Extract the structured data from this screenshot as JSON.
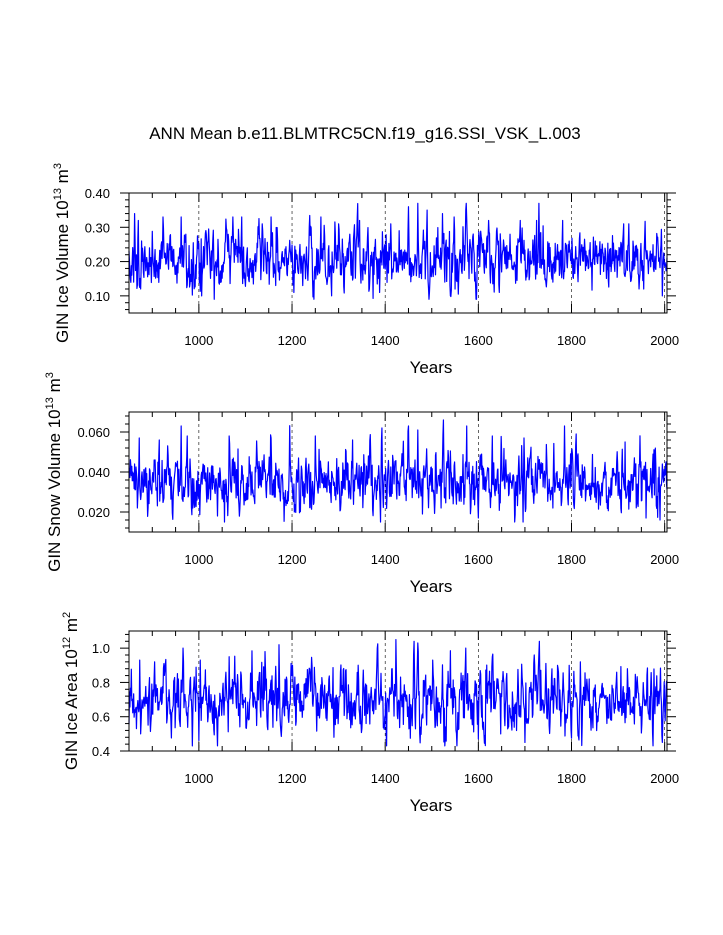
{
  "figure": {
    "title": "ANN Mean b.e11.BLMTRC5CN.f19_g16.SSI_VSK_L.003"
  },
  "colors": {
    "series": "#0000ff",
    "axes": "#000000",
    "background": "#ffffff"
  },
  "chart_data": [
    {
      "type": "line",
      "title": "ANN Mean b.e11.BLMTRC5CN.f19_g16.SSI_VSK_L.003",
      "xlabel": "Years",
      "ylabel": "GIN Ice Volume 10",
      "ylabel_exponent": "13",
      "ylabel_unit": "m",
      "ylabel_unit_exponent": "3",
      "xlim": [
        850,
        2005
      ],
      "ylim": [
        0.05,
        0.4
      ],
      "x_ticks": [
        1000,
        1200,
        1400,
        1600,
        1800,
        2000
      ],
      "x_tick_labels": [
        "1000",
        "1200",
        "1400",
        "1600",
        "1800",
        "2000"
      ],
      "y_ticks": [
        0.1,
        0.2,
        0.3,
        0.4
      ],
      "y_tick_labels": [
        "0.10",
        "0.20",
        "0.30",
        "0.40"
      ],
      "x_minor_step": 50,
      "y_minor_step": 0.02,
      "grid": "vertical dashed at major x ticks",
      "series": [
        {
          "name": "GIN Ice Volume",
          "x_start": 850,
          "x_step": 1,
          "count": 1156,
          "mean": 0.205,
          "std": 0.042,
          "min": 0.09,
          "max": 0.37,
          "lag1_autocorrelation": 0.45,
          "peaks": [
            [
              862,
              0.34
            ],
            [
              870,
              0.32
            ],
            [
              923,
              0.33
            ],
            [
              962,
              0.33
            ],
            [
              1005,
              0.32
            ],
            [
              1073,
              0.33
            ],
            [
              1092,
              0.33
            ],
            [
              1136,
              0.31
            ],
            [
              1155,
              0.33
            ],
            [
              1165,
              0.32
            ],
            [
              1262,
              0.33
            ],
            [
              1300,
              0.31
            ],
            [
              1345,
              0.32
            ],
            [
              1412,
              0.31
            ],
            [
              1450,
              0.36
            ],
            [
              1470,
              0.37
            ],
            [
              1523,
              0.34
            ],
            [
              1548,
              0.33
            ],
            [
              1573,
              0.35
            ],
            [
              1622,
              0.32
            ],
            [
              1690,
              0.32
            ],
            [
              1725,
              0.32
            ],
            [
              1730,
              0.37
            ],
            [
              1781,
              0.32
            ],
            [
              1912,
              0.31
            ],
            [
              1923,
              0.31
            ]
          ],
          "troughs": [
            [
              860,
              0.14
            ],
            [
              875,
              0.12
            ],
            [
              1006,
              0.1
            ],
            [
              1033,
              0.09
            ],
            [
              1165,
              0.13
            ],
            [
              1204,
              0.11
            ],
            [
              1223,
              0.13
            ],
            [
              1285,
              0.1
            ],
            [
              1388,
              0.11
            ],
            [
              1495,
              0.11
            ],
            [
              1550,
              0.12
            ],
            [
              1645,
              0.11
            ],
            [
              1760,
              0.14
            ],
            [
              1945,
              0.12
            ],
            [
              1955,
              0.12
            ],
            [
              1995,
              0.1
            ]
          ]
        }
      ]
    },
    {
      "type": "line",
      "xlabel": "Years",
      "ylabel": "GIN Snow Volume 10",
      "ylabel_exponent": "13",
      "ylabel_unit": "m",
      "ylabel_unit_exponent": "3",
      "xlim": [
        850,
        2005
      ],
      "ylim": [
        0.01,
        0.07
      ],
      "x_ticks": [
        1000,
        1200,
        1400,
        1600,
        1800,
        2000
      ],
      "x_tick_labels": [
        "1000",
        "1200",
        "1400",
        "1600",
        "1800",
        "2000"
      ],
      "y_ticks": [
        0.02,
        0.04,
        0.06
      ],
      "y_tick_labels": [
        "0.020",
        "0.040",
        "0.060"
      ],
      "x_minor_step": 50,
      "y_minor_step": 0.004,
      "grid": "vertical dashed at major x ticks",
      "series": [
        {
          "name": "GIN Snow Volume",
          "x_start": 850,
          "x_step": 1,
          "count": 1156,
          "mean": 0.035,
          "std": 0.0075,
          "min": 0.015,
          "max": 0.066,
          "lag1_autocorrelation": 0.45,
          "peaks": [
            [
              872,
              0.057
            ],
            [
              915,
              0.056
            ],
            [
              962,
              0.063
            ],
            [
              975,
              0.058
            ],
            [
              1065,
              0.058
            ],
            [
              1155,
              0.057
            ],
            [
              1250,
              0.058
            ],
            [
              1330,
              0.056
            ],
            [
              1393,
              0.062
            ],
            [
              1450,
              0.063
            ],
            [
              1470,
              0.061
            ],
            [
              1525,
              0.066
            ],
            [
              1575,
              0.063
            ],
            [
              1630,
              0.058
            ],
            [
              1698,
              0.057
            ],
            [
              1785,
              0.063
            ],
            [
              1810,
              0.059
            ],
            [
              1915,
              0.055
            ]
          ],
          "troughs": [
            [
              868,
              0.022
            ],
            [
              1040,
              0.018
            ],
            [
              1205,
              0.02
            ],
            [
              1390,
              0.015
            ],
            [
              1480,
              0.019
            ],
            [
              1600,
              0.017
            ],
            [
              1760,
              0.022
            ],
            [
              1960,
              0.017
            ],
            [
              1990,
              0.016
            ]
          ]
        }
      ]
    },
    {
      "type": "line",
      "xlabel": "Years",
      "ylabel": "GIN Ice Area 10",
      "ylabel_exponent": "12",
      "ylabel_unit": "m",
      "ylabel_unit_exponent": "2",
      "xlim": [
        850,
        2005
      ],
      "ylim": [
        0.4,
        1.1
      ],
      "x_ticks": [
        1000,
        1200,
        1400,
        1600,
        1800,
        2000
      ],
      "x_tick_labels": [
        "1000",
        "1200",
        "1400",
        "1600",
        "1800",
        "2000"
      ],
      "y_ticks": [
        0.4,
        0.6,
        0.8,
        1.0
      ],
      "y_tick_labels": [
        "0.4",
        "0.6",
        "0.8",
        "1.0"
      ],
      "x_minor_step": 50,
      "y_minor_step": 0.04,
      "grid": "vertical dashed at major x ticks",
      "series": [
        {
          "name": "GIN Ice Area",
          "x_start": 850,
          "x_step": 1,
          "count": 1156,
          "mean": 0.7,
          "std": 0.095,
          "min": 0.43,
          "max": 1.05,
          "lag1_autocorrelation": 0.45,
          "peaks": [
            [
              873,
              0.93
            ],
            [
              905,
              0.92
            ],
            [
              925,
              0.91
            ],
            [
              1003,
              0.93
            ],
            [
              1142,
              0.98
            ],
            [
              1172,
              1.02
            ],
            [
              1290,
              0.85
            ],
            [
              1383,
              1.0
            ],
            [
              1423,
              1.05
            ],
            [
              1462,
              1.04
            ],
            [
              1470,
              1.03
            ],
            [
              1502,
              0.93
            ],
            [
              1573,
              1.0
            ],
            [
              1630,
              0.95
            ],
            [
              1720,
              0.96
            ],
            [
              1731,
              1.04
            ],
            [
              1770,
              0.9
            ],
            [
              1795,
              0.9
            ],
            [
              1920,
              0.88
            ]
          ],
          "troughs": [
            [
              875,
              0.5
            ],
            [
              1040,
              0.43
            ],
            [
              1208,
              0.55
            ],
            [
              1290,
              0.48
            ],
            [
              1350,
              0.53
            ],
            [
              1402,
              0.52
            ],
            [
              1600,
              0.47
            ],
            [
              1700,
              0.45
            ],
            [
              1975,
              0.43
            ],
            [
              1995,
              0.45
            ]
          ]
        }
      ]
    }
  ]
}
